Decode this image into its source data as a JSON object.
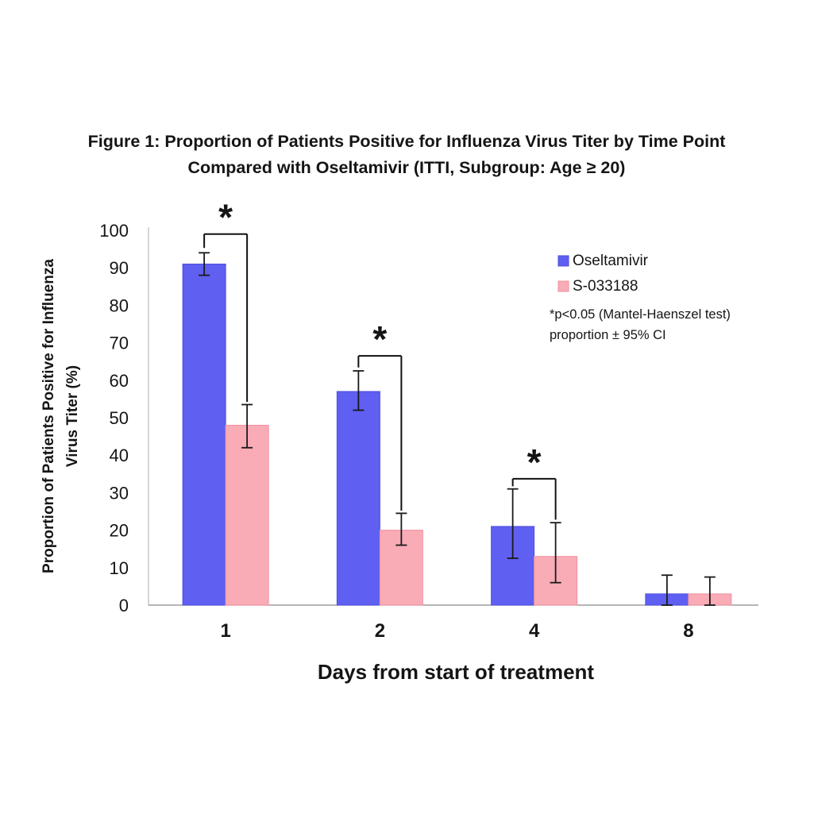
{
  "title": {
    "line1": "Figure 1: Proportion of Patients Positive for Influenza Virus Titer by Time Point",
    "line2": "Compared with Oseltamivir (ITTI, Subgroup: Age ≥ 20)"
  },
  "chart_data": {
    "type": "bar",
    "categories": [
      "1",
      "2",
      "4",
      "8"
    ],
    "xlabel": "Days from start of treatment",
    "ylabel_line1": "Proportion of Patients Positive for Influenza",
    "ylabel_line2": "Virus Titer (%)",
    "ylim": [
      0,
      100
    ],
    "ytick_step": 10,
    "grid": false,
    "legend_position": "upper right",
    "series": [
      {
        "name": "Oseltamivir",
        "color": "#5f5ff2",
        "edge_color": "#4d4de0",
        "values": [
          91,
          57,
          21,
          3
        ],
        "ci_low": [
          88,
          52,
          12.5,
          0
        ],
        "ci_high": [
          94,
          62.5,
          31,
          8
        ]
      },
      {
        "name": "S-033188",
        "color": "#f9abb6",
        "edge_color": "#ef93a0",
        "values": [
          48,
          20,
          13,
          3
        ],
        "ci_low": [
          42,
          16,
          6,
          0
        ],
        "ci_high": [
          53.5,
          24.5,
          22,
          7.5
        ]
      }
    ],
    "significance": [
      {
        "category_index": 0,
        "label": "*",
        "bar_y": 99,
        "left_drop_y": 95.3,
        "right_drop_y": 54.2
      },
      {
        "category_index": 1,
        "label": "*",
        "bar_y": 66.5,
        "left_drop_y": 63.4,
        "right_drop_y": 25.2
      },
      {
        "category_index": 2,
        "label": "*",
        "bar_y": 33.7,
        "left_drop_y": 31.7,
        "right_drop_y": 22.8
      }
    ],
    "footnote_line1": "*p<0.05 (Mantel-Haenszel test)",
    "footnote_line2": "proportion ± 95% CI"
  },
  "colors": {
    "axis_y": "#c8c8c8",
    "axis_x": "#8a8a8a",
    "error_bar": "#1a1a1a",
    "bracket": "#111111",
    "text": "#151515"
  }
}
